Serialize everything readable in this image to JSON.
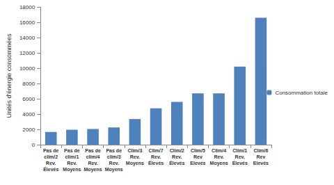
{
  "chart_data": {
    "type": "bar",
    "y_label": "Unités d'énergie consommées",
    "categories": [
      "Pas de\nclim/2\nRev.\nÉlevés",
      "Pas de\nclim/1\nRev.\nMoyens",
      "Pas de\nclim/4\nRev.\nMoyens",
      "Pas de\nclim/3\nRev.\nMoyens",
      "Clim/3\nRev.\nMoyens",
      "Clim/7\nRev.\nÉlevés",
      "Clim/2\nRev.\nÉlevés",
      "Clim/5\nRev\nElevés",
      "Clim/4\nRev.\nMoyens",
      "Clim/1\nRev.\nÉlevés",
      "Clim/6\nRev\nElevés"
    ],
    "series": [
      {
        "name": "Consommation totale",
        "color": "#4f81bd",
        "values": [
          1650,
          1950,
          2050,
          2250,
          3350,
          4750,
          5600,
          6700,
          6700,
          10200,
          16600
        ]
      }
    ],
    "ylim": [
      0,
      18000
    ],
    "yticks": [
      0,
      2000,
      4000,
      6000,
      8000,
      10000,
      12000,
      14000,
      16000,
      18000
    ],
    "grid": false,
    "legend": "right"
  }
}
